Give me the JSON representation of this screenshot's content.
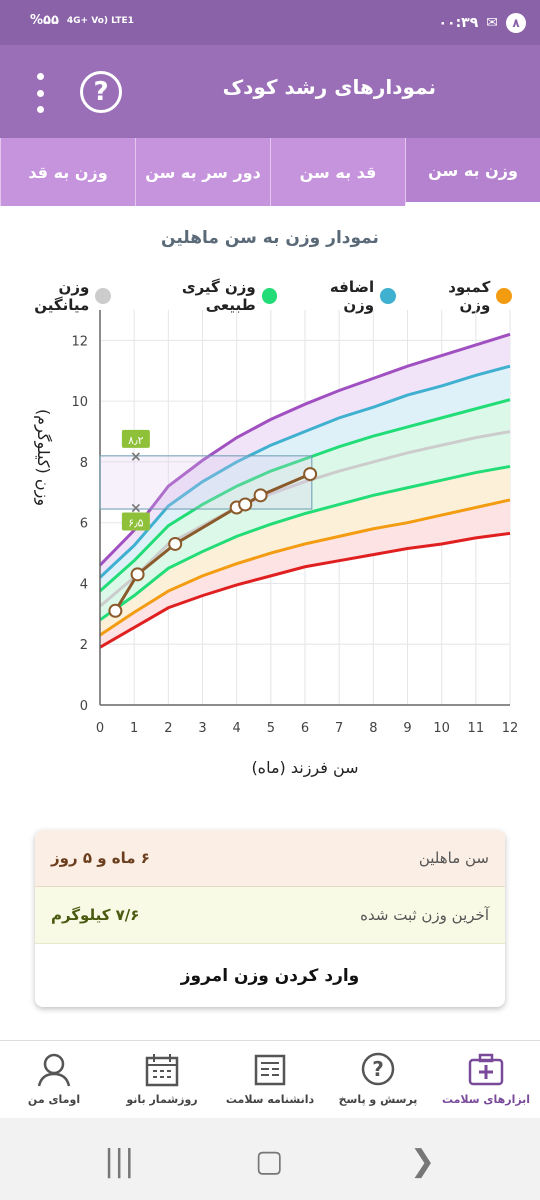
{
  "status": {
    "time": "۰۰:۳۹",
    "notif_count": "۸",
    "battery": "%۵۵",
    "network": "4G+ Vo) LTE1"
  },
  "header": {
    "title": "نمودارهای رشد کودک",
    "help_glyph": "?"
  },
  "tabs": [
    {
      "label": "وزن به سن",
      "active": true
    },
    {
      "label": "قد به سن",
      "active": false
    },
    {
      "label": "دور سر به سن",
      "active": false
    },
    {
      "label": "وزن به قد",
      "active": false
    }
  ],
  "chart_title": "نمودار وزن به سن ماهلین",
  "legend": [
    {
      "label": "کمبود وزن",
      "color": "#f39c12"
    },
    {
      "label": "اضافه وزن",
      "color": "#3fb0d0"
    },
    {
      "label": "وزن گیری طبیعی",
      "color": "#22dd77"
    },
    {
      "label": "وزن میانگین",
      "color": "#cccccc"
    }
  ],
  "chart_data": {
    "type": "line",
    "xlabel": "سن فرزند (ماه)",
    "ylabel": "وزن (کیلوگرم)",
    "xlim": [
      0,
      12
    ],
    "ylim": [
      0,
      13
    ],
    "x_ticks": [
      "0",
      "1",
      "2",
      "3",
      "4",
      "5",
      "6",
      "7",
      "8",
      "9",
      "10",
      "11",
      "12"
    ],
    "y_ticks": [
      "0",
      "2",
      "4",
      "6",
      "8",
      "10",
      "12"
    ],
    "reference_curves": [
      {
        "color": "#e02020",
        "values": [
          1.9,
          2.55,
          3.2,
          3.6,
          3.95,
          4.25,
          4.55,
          4.75,
          4.95,
          5.15,
          5.3,
          5.5,
          5.65
        ]
      },
      {
        "color": "#f39c12",
        "values": [
          2.3,
          3.05,
          3.75,
          4.25,
          4.65,
          5.0,
          5.3,
          5.55,
          5.8,
          6.0,
          6.25,
          6.5,
          6.75
        ]
      },
      {
        "color": "#22dd77",
        "values": [
          2.8,
          3.6,
          4.5,
          5.05,
          5.55,
          5.95,
          6.3,
          6.6,
          6.9,
          7.15,
          7.4,
          7.65,
          7.85
        ]
      },
      {
        "color": "#cccccc",
        "values": [
          3.25,
          4.2,
          5.3,
          5.9,
          6.5,
          6.95,
          7.35,
          7.7,
          8.0,
          8.3,
          8.55,
          8.8,
          9.0
        ]
      },
      {
        "color": "#22dd77",
        "values": [
          3.75,
          4.75,
          5.9,
          6.6,
          7.2,
          7.7,
          8.1,
          8.5,
          8.85,
          9.15,
          9.45,
          9.75,
          10.05
        ]
      },
      {
        "color": "#3fb0d0",
        "values": [
          4.2,
          5.25,
          6.55,
          7.35,
          8.0,
          8.55,
          9.0,
          9.45,
          9.8,
          10.2,
          10.5,
          10.85,
          11.15
        ]
      },
      {
        "color": "#a050c0",
        "values": [
          4.6,
          5.75,
          7.2,
          8.05,
          8.8,
          9.4,
          9.9,
          10.35,
          10.75,
          11.15,
          11.5,
          11.85,
          12.2
        ]
      }
    ],
    "child_points": {
      "x": [
        0.45,
        1.1,
        2.2,
        4.0,
        4.25,
        4.7,
        6.15
      ],
      "y": [
        3.1,
        4.3,
        5.3,
        6.5,
        6.6,
        6.9,
        7.6
      ]
    },
    "range_box": {
      "x": [
        0,
        6.2
      ],
      "y": [
        6.45,
        8.2
      ]
    },
    "range_markers": [
      {
        "x": 1.05,
        "y": 8.2,
        "label": "۸٫۲"
      },
      {
        "x": 1.05,
        "y": 6.5,
        "label": "۶٫۵"
      }
    ]
  },
  "info": {
    "age_label": "سن ماهلین",
    "age_value": "۶ ماه و ۵ روز",
    "weight_label": "آخرین وزن ثبت شده",
    "weight_value": "۷/۶ کیلوگرم",
    "enter_button": "وارد کردن وزن امروز"
  },
  "bottom_nav": [
    {
      "label": "ابزارهای سلامت",
      "icon": "medical-kit-icon",
      "active": true
    },
    {
      "label": "پرسش و پاسخ",
      "icon": "question-bubble-icon",
      "active": false
    },
    {
      "label": "دانشنامه سلامت",
      "icon": "newspaper-icon",
      "active": false
    },
    {
      "label": "روزشمار بانو",
      "icon": "calendar-icon",
      "active": false
    },
    {
      "label": "اومای من",
      "icon": "profile-avatar-icon",
      "active": false
    }
  ]
}
